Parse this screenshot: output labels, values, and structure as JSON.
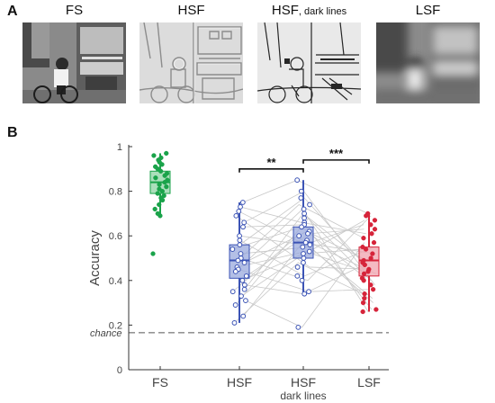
{
  "panel_a": {
    "letter": "A",
    "images": [
      {
        "title": "FS",
        "title_suffix": "",
        "semantic": "full-spectrum-photo-cyclist-bus"
      },
      {
        "title": "HSF",
        "title_suffix": "",
        "semantic": "high-spatial-frequency-filtered-photo"
      },
      {
        "title": "HSF",
        "title_suffix": ", dark lines",
        "semantic": "high-spatial-frequency-dark-lines-photo"
      },
      {
        "title": "LSF",
        "title_suffix": "",
        "semantic": "low-spatial-frequency-blurred-photo"
      }
    ]
  },
  "panel_b": {
    "letter": "B",
    "chart_data": {
      "type": "box-scatter",
      "ylabel": "Accuracy",
      "ylim": [
        0,
        1
      ],
      "yticks": [
        "0",
        "0.2",
        "0.4",
        "0.6",
        "0.8",
        "1"
      ],
      "ytick_values": [
        0,
        0.2,
        0.4,
        0.6,
        0.8,
        1
      ],
      "chance_label": "chance",
      "chance_value": 0.166,
      "categories": [
        {
          "label": "FS",
          "sublabel": ""
        },
        {
          "label": "HSF",
          "sublabel": ""
        },
        {
          "label": "HSF",
          "sublabel": "dark lines"
        },
        {
          "label": "LSF",
          "sublabel": ""
        }
      ],
      "significance": [
        {
          "from": 1,
          "to": 2,
          "label": "**",
          "y": 0.9
        },
        {
          "from": 2,
          "to": 3,
          "label": "***",
          "y": 0.94
        }
      ],
      "groups": [
        {
          "color": "#1aa34a",
          "fill": "#8fd4a4",
          "median": 0.84,
          "q1": 0.79,
          "q3": 0.89,
          "whisker_low": 0.69,
          "whisker_high": 0.97,
          "points": [
            0.97,
            0.96,
            0.95,
            0.94,
            0.93,
            0.92,
            0.91,
            0.9,
            0.89,
            0.88,
            0.87,
            0.86,
            0.85,
            0.84,
            0.83,
            0.82,
            0.81,
            0.8,
            0.79,
            0.78,
            0.77,
            0.76,
            0.74,
            0.72,
            0.7,
            0.69,
            0.52
          ]
        },
        {
          "color": "#3b53b5",
          "fill": "#9aa9dd",
          "median": 0.49,
          "q1": 0.41,
          "q3": 0.56,
          "whisker_low": 0.21,
          "whisker_high": 0.75,
          "points": [
            0.75,
            0.73,
            0.71,
            0.69,
            0.66,
            0.64,
            0.6,
            0.58,
            0.56,
            0.54,
            0.52,
            0.5,
            0.49,
            0.48,
            0.46,
            0.45,
            0.44,
            0.42,
            0.4,
            0.38,
            0.36,
            0.35,
            0.33,
            0.31,
            0.29,
            0.24,
            0.21
          ]
        },
        {
          "color": "#3b53b5",
          "fill": "#9aa9dd",
          "median": 0.57,
          "q1": 0.5,
          "q3": 0.64,
          "whisker_low": 0.34,
          "whisker_high": 0.85,
          "points": [
            0.85,
            0.8,
            0.77,
            0.74,
            0.72,
            0.7,
            0.68,
            0.66,
            0.65,
            0.64,
            0.62,
            0.61,
            0.6,
            0.58,
            0.57,
            0.56,
            0.55,
            0.53,
            0.52,
            0.5,
            0.48,
            0.46,
            0.42,
            0.4,
            0.35,
            0.34,
            0.19
          ]
        },
        {
          "color": "#d6243a",
          "fill": "#f0a3ad",
          "median": 0.49,
          "q1": 0.42,
          "q3": 0.55,
          "whisker_low": 0.26,
          "whisker_high": 0.7,
          "points": [
            0.7,
            0.69,
            0.67,
            0.65,
            0.63,
            0.61,
            0.59,
            0.57,
            0.55,
            0.54,
            0.52,
            0.5,
            0.49,
            0.48,
            0.47,
            0.45,
            0.44,
            0.43,
            0.41,
            0.4,
            0.38,
            0.36,
            0.34,
            0.32,
            0.3,
            0.27,
            0.26
          ]
        }
      ]
    }
  }
}
